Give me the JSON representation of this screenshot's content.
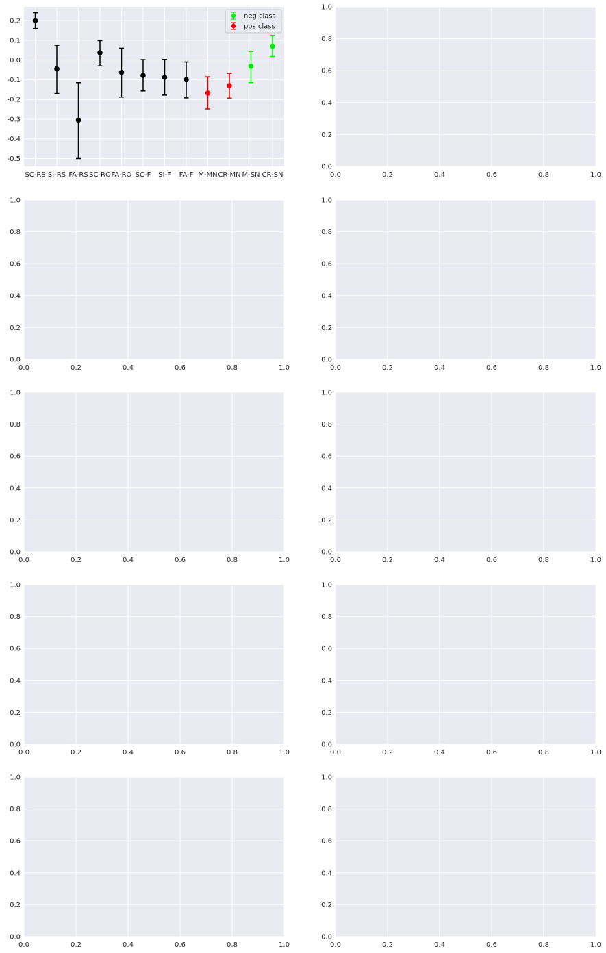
{
  "figure": {
    "background": "#ffffff",
    "axes_facecolor": "#eaeaf2",
    "grid_color": "#ffffff",
    "tick_color": "#262626"
  },
  "chart_data": [
    {
      "type": "scatter",
      "subtype": "errorbar",
      "grid": true,
      "legend_position": "upper right",
      "ylim": [
        -0.54,
        0.27
      ],
      "yticks": [
        0.2,
        0.1,
        0.0,
        -0.1,
        -0.2,
        -0.3,
        -0.4,
        -0.5
      ],
      "ytick_labels": [
        "0.2",
        "0.1",
        "0.0",
        "-0.1",
        "-0.2",
        "-0.3",
        "-0.4",
        "-0.5"
      ],
      "categories": [
        "SC-RS",
        "SI-RS",
        "FA-RS",
        "SC-RO",
        "FA-RO",
        "SC-F",
        "SI-F",
        "FA-F",
        "M-MN",
        "CR-MN",
        "M-SN",
        "CR-SN"
      ],
      "points": [
        {
          "category": "SC-RS",
          "y": 0.2,
          "yerr_low": 0.16,
          "yerr_high": 0.24,
          "color": "#000000"
        },
        {
          "category": "SI-RS",
          "y": -0.045,
          "yerr_low": -0.17,
          "yerr_high": 0.075,
          "color": "#000000"
        },
        {
          "category": "FA-RS",
          "y": -0.305,
          "yerr_low": -0.5,
          "yerr_high": -0.115,
          "color": "#000000"
        },
        {
          "category": "SC-RO",
          "y": 0.037,
          "yerr_low": -0.03,
          "yerr_high": 0.098,
          "color": "#000000"
        },
        {
          "category": "FA-RO",
          "y": -0.063,
          "yerr_low": -0.188,
          "yerr_high": 0.06,
          "color": "#000000"
        },
        {
          "category": "SC-F",
          "y": -0.078,
          "yerr_low": -0.157,
          "yerr_high": 0.002,
          "color": "#000000"
        },
        {
          "category": "SI-F",
          "y": -0.088,
          "yerr_low": -0.178,
          "yerr_high": 0.003,
          "color": "#000000"
        },
        {
          "category": "FA-F",
          "y": -0.1,
          "yerr_low": -0.192,
          "yerr_high": -0.01,
          "color": "#000000"
        },
        {
          "category": "M-MN",
          "y": -0.168,
          "yerr_low": -0.248,
          "yerr_high": -0.085,
          "color": "#ee0000"
        },
        {
          "category": "CR-MN",
          "y": -0.13,
          "yerr_low": -0.193,
          "yerr_high": -0.068,
          "color": "#ee0000"
        },
        {
          "category": "M-SN",
          "y": -0.032,
          "yerr_low": -0.115,
          "yerr_high": 0.043,
          "color": "#00ee00"
        },
        {
          "category": "CR-SN",
          "y": 0.07,
          "yerr_low": 0.018,
          "yerr_high": 0.125,
          "color": "#00ee00"
        }
      ],
      "legend": [
        {
          "label": "neg class",
          "color": "#00ee00"
        },
        {
          "label": "pos class",
          "color": "#ee0000"
        }
      ]
    },
    {
      "type": "scatter",
      "empty": true,
      "grid": true,
      "xlim": [
        0,
        1
      ],
      "ylim": [
        0,
        1
      ],
      "xtick_labels": [
        "0.0",
        "0.2",
        "0.4",
        "0.6",
        "0.8",
        "1.0"
      ],
      "ytick_labels": [
        "0.0",
        "0.2",
        "0.4",
        "0.6",
        "0.8",
        "1.0"
      ]
    },
    {
      "type": "scatter",
      "empty": true,
      "grid": true,
      "xlim": [
        0,
        1
      ],
      "ylim": [
        0,
        1
      ],
      "xtick_labels": [
        "0.0",
        "0.2",
        "0.4",
        "0.6",
        "0.8",
        "1.0"
      ],
      "ytick_labels": [
        "0.0",
        "0.2",
        "0.4",
        "0.6",
        "0.8",
        "1.0"
      ]
    },
    {
      "type": "scatter",
      "empty": true,
      "grid": true,
      "xlim": [
        0,
        1
      ],
      "ylim": [
        0,
        1
      ],
      "xtick_labels": [
        "0.0",
        "0.2",
        "0.4",
        "0.6",
        "0.8",
        "1.0"
      ],
      "ytick_labels": [
        "0.0",
        "0.2",
        "0.4",
        "0.6",
        "0.8",
        "1.0"
      ]
    },
    {
      "type": "scatter",
      "empty": true,
      "grid": true,
      "xlim": [
        0,
        1
      ],
      "ylim": [
        0,
        1
      ],
      "xtick_labels": [
        "0.0",
        "0.2",
        "0.4",
        "0.6",
        "0.8",
        "1.0"
      ],
      "ytick_labels": [
        "0.0",
        "0.2",
        "0.4",
        "0.6",
        "0.8",
        "1.0"
      ]
    },
    {
      "type": "scatter",
      "empty": true,
      "grid": true,
      "xlim": [
        0,
        1
      ],
      "ylim": [
        0,
        1
      ],
      "xtick_labels": [
        "0.0",
        "0.2",
        "0.4",
        "0.6",
        "0.8",
        "1.0"
      ],
      "ytick_labels": [
        "0.0",
        "0.2",
        "0.4",
        "0.6",
        "0.8",
        "1.0"
      ]
    },
    {
      "type": "scatter",
      "empty": true,
      "grid": true,
      "xlim": [
        0,
        1
      ],
      "ylim": [
        0,
        1
      ],
      "xtick_labels": [
        "0.0",
        "0.2",
        "0.4",
        "0.6",
        "0.8",
        "1.0"
      ],
      "ytick_labels": [
        "0.0",
        "0.2",
        "0.4",
        "0.6",
        "0.8",
        "1.0"
      ]
    },
    {
      "type": "scatter",
      "empty": true,
      "grid": true,
      "xlim": [
        0,
        1
      ],
      "ylim": [
        0,
        1
      ],
      "xtick_labels": [
        "0.0",
        "0.2",
        "0.4",
        "0.6",
        "0.8",
        "1.0"
      ],
      "ytick_labels": [
        "0.0",
        "0.2",
        "0.4",
        "0.6",
        "0.8",
        "1.0"
      ]
    },
    {
      "type": "scatter",
      "empty": true,
      "grid": true,
      "xlim": [
        0,
        1
      ],
      "ylim": [
        0,
        1
      ],
      "xtick_labels": [
        "0.0",
        "0.2",
        "0.4",
        "0.6",
        "0.8",
        "1.0"
      ],
      "ytick_labels": [
        "0.0",
        "0.2",
        "0.4",
        "0.6",
        "0.8",
        "1.0"
      ]
    },
    {
      "type": "scatter",
      "empty": true,
      "grid": true,
      "xlim": [
        0,
        1
      ],
      "ylim": [
        0,
        1
      ],
      "xtick_labels": [
        "0.0",
        "0.2",
        "0.4",
        "0.6",
        "0.8",
        "1.0"
      ],
      "ytick_labels": [
        "0.0",
        "0.2",
        "0.4",
        "0.6",
        "0.8",
        "1.0"
      ]
    }
  ]
}
